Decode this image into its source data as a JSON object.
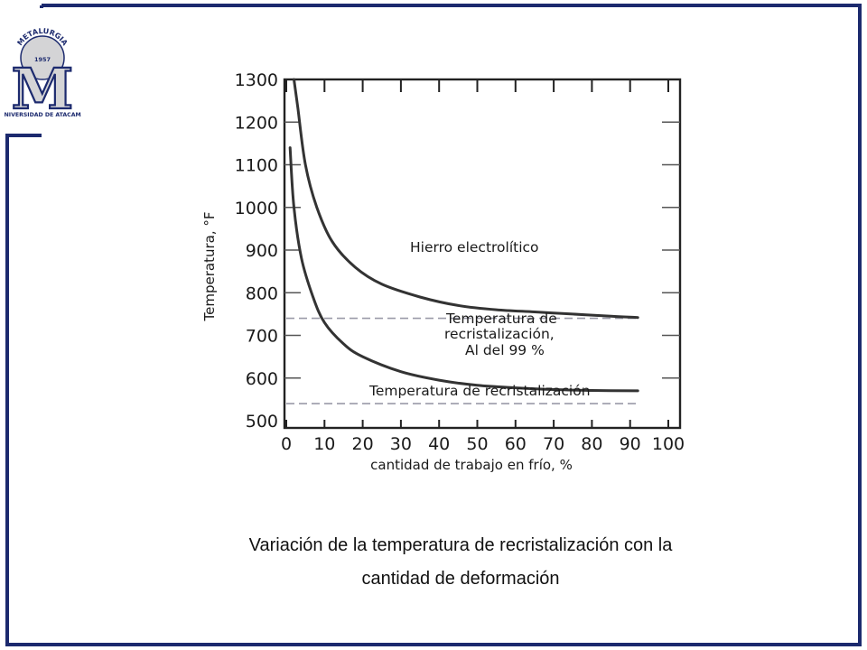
{
  "logo": {
    "arc_text": "METALURGIA",
    "year": "1957",
    "bottom_text": "UNIVERSIDAD DE ATACAMA",
    "letter": "M"
  },
  "colors": {
    "frame": "#1c2a6e",
    "logo_fill": "#d4d4d6",
    "logo_ink": "#1c2a6e",
    "curve": "#333333",
    "dashed": "#9a9aa8"
  },
  "chart_data": {
    "type": "line",
    "xlabel": "cantidad de trabajo en frío, %",
    "ylabel": "Temperatura, °F",
    "xlim": [
      0,
      100
    ],
    "ylim": [
      500,
      1300
    ],
    "xticks": [
      "0",
      "10",
      "20",
      "30",
      "40",
      "50",
      "60",
      "70",
      "80",
      "90",
      "100"
    ],
    "yticks": [
      "1300",
      "1200",
      "1100",
      "1000",
      "900",
      "800",
      "700",
      "600",
      "500"
    ],
    "series": [
      {
        "name": "Hierro electrolítico",
        "points": [
          [
            2,
            1300
          ],
          [
            3,
            1235
          ],
          [
            5,
            1100
          ],
          [
            8,
            1000
          ],
          [
            12,
            920
          ],
          [
            18,
            860
          ],
          [
            25,
            820
          ],
          [
            35,
            790
          ],
          [
            45,
            770
          ],
          [
            55,
            760
          ],
          [
            65,
            755
          ],
          [
            75,
            750
          ],
          [
            85,
            745
          ],
          [
            92,
            742
          ]
        ]
      },
      {
        "name": "Al del 99 %",
        "points": [
          [
            1,
            1140
          ],
          [
            2,
            1000
          ],
          [
            4,
            880
          ],
          [
            7,
            790
          ],
          [
            10,
            730
          ],
          [
            15,
            680
          ],
          [
            20,
            650
          ],
          [
            30,
            615
          ],
          [
            40,
            595
          ],
          [
            50,
            583
          ],
          [
            60,
            577
          ],
          [
            70,
            573
          ],
          [
            80,
            571
          ],
          [
            92,
            570
          ]
        ]
      }
    ],
    "reference_lines": [
      {
        "name": "Temperatura de recristalización, Al del 99 %",
        "y": 740
      },
      {
        "name": "Temperatura de recristalización",
        "y": 540
      }
    ],
    "annotations": [
      {
        "text": "Hierro electrolítico"
      },
      {
        "text": "Temperatura de"
      },
      {
        "text": "recristalización,"
      },
      {
        "text": "Al del 99 %"
      },
      {
        "text": "Temperatura de recristalización"
      }
    ]
  },
  "caption": {
    "line1": "Variación de la temperatura de recristalización con la",
    "line2": "cantidad de deformación"
  }
}
